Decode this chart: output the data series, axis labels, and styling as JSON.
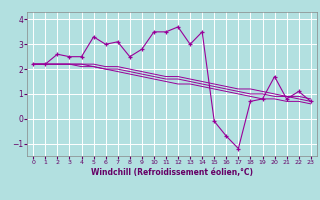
{
  "xlabel": "Windchill (Refroidissement éolien,°C)",
  "bg_color": "#b2e0e0",
  "grid_color": "#ffffff",
  "line_color": "#990099",
  "tick_color": "#660066",
  "label_color": "#660066",
  "ylim": [
    -1.5,
    4.3
  ],
  "xlim": [
    -0.5,
    23.5
  ],
  "yticks": [
    -1,
    0,
    1,
    2,
    3,
    4
  ],
  "xticks": [
    0,
    1,
    2,
    3,
    4,
    5,
    6,
    7,
    8,
    9,
    10,
    11,
    12,
    13,
    14,
    15,
    16,
    17,
    18,
    19,
    20,
    21,
    22,
    23
  ],
  "series": [
    [
      2.2,
      2.2,
      2.6,
      2.5,
      2.5,
      3.3,
      3.0,
      3.1,
      2.5,
      2.8,
      3.5,
      3.5,
      3.7,
      3.0,
      3.5,
      -0.1,
      -0.7,
      -1.2,
      0.7,
      0.8,
      1.7,
      0.8,
      1.1,
      0.7
    ],
    [
      2.2,
      2.2,
      2.2,
      2.2,
      2.2,
      2.2,
      2.1,
      2.1,
      2.0,
      1.9,
      1.8,
      1.7,
      1.7,
      1.6,
      1.5,
      1.4,
      1.3,
      1.2,
      1.2,
      1.1,
      1.0,
      0.9,
      0.9,
      0.8
    ],
    [
      2.2,
      2.2,
      2.2,
      2.2,
      2.2,
      2.1,
      2.0,
      2.0,
      1.9,
      1.8,
      1.7,
      1.6,
      1.6,
      1.5,
      1.4,
      1.3,
      1.2,
      1.1,
      1.0,
      1.0,
      0.9,
      0.9,
      0.8,
      0.7
    ],
    [
      2.2,
      2.2,
      2.2,
      2.2,
      2.1,
      2.1,
      2.0,
      1.9,
      1.8,
      1.7,
      1.6,
      1.5,
      1.4,
      1.4,
      1.3,
      1.2,
      1.1,
      1.0,
      0.9,
      0.8,
      0.8,
      0.7,
      0.7,
      0.6
    ]
  ]
}
